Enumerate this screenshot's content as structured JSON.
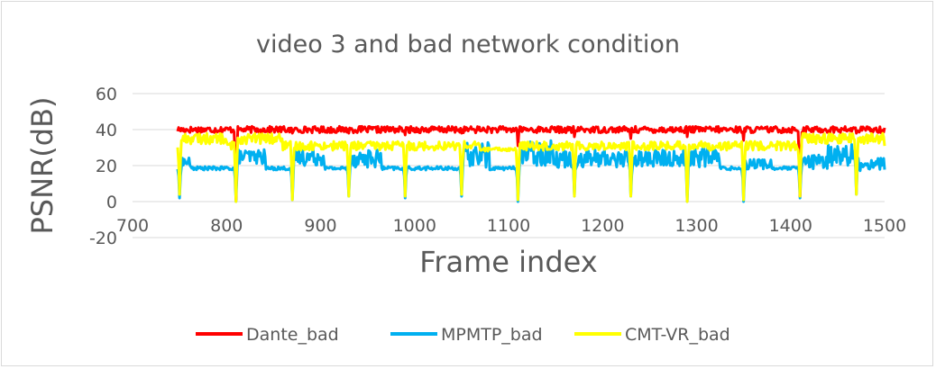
{
  "chart_data": {
    "type": "line",
    "title": "video 3 and bad network condition",
    "xlabel": "Frame index",
    "ylabel": "PSNR(dB)",
    "xlim": [
      700,
      1500
    ],
    "ylim": [
      -20,
      60
    ],
    "x_ticks": [
      700,
      800,
      900,
      1000,
      1100,
      1200,
      1300,
      1400,
      1500
    ],
    "y_ticks": [
      -20,
      0,
      20,
      40,
      60
    ],
    "grid": true,
    "legend_position": "bottom",
    "dip_frames": [
      750,
      810,
      870,
      930,
      990,
      1050,
      1110,
      1170,
      1230,
      1290,
      1350,
      1410,
      1470
    ],
    "series": [
      {
        "name": "Dante_bad",
        "color": "#ff0000",
        "baseline": 40,
        "noise_amplitude": 1.8,
        "dips": [
          {
            "frame": 810,
            "value": 1
          },
          {
            "frame": 870,
            "value": 38
          },
          {
            "frame": 930,
            "value": 38
          },
          {
            "frame": 990,
            "value": 37
          },
          {
            "frame": 1050,
            "value": 38
          },
          {
            "frame": 1110,
            "value": 31
          },
          {
            "frame": 1170,
            "value": 36
          },
          {
            "frame": 1230,
            "value": 35
          },
          {
            "frame": 1290,
            "value": 36
          },
          {
            "frame": 1350,
            "value": 34
          },
          {
            "frame": 1410,
            "value": 3
          },
          {
            "frame": 1470,
            "value": 38
          }
        ]
      },
      {
        "name": "MPMTP_bad",
        "color": "#00b0f0",
        "baseline": 18.5,
        "noise_amplitude": 1,
        "segments": [
          {
            "start": 752,
            "end": 762,
            "mean": 22,
            "amplitude": 3
          },
          {
            "start": 812,
            "end": 842,
            "mean": 25,
            "amplitude": 4
          },
          {
            "start": 872,
            "end": 905,
            "mean": 25,
            "amplitude": 5
          },
          {
            "start": 932,
            "end": 965,
            "mean": 24,
            "amplitude": 5
          },
          {
            "start": 1052,
            "end": 1080,
            "mean": 26,
            "amplitude": 7
          },
          {
            "start": 1112,
            "end": 1150,
            "mean": 27,
            "amplitude": 7
          },
          {
            "start": 1150,
            "end": 1230,
            "mean": 24,
            "amplitude": 5
          },
          {
            "start": 1232,
            "end": 1290,
            "mean": 24,
            "amplitude": 5
          },
          {
            "start": 1292,
            "end": 1325,
            "mean": 25,
            "amplitude": 6
          },
          {
            "start": 1352,
            "end": 1380,
            "mean": 21,
            "amplitude": 3
          },
          {
            "start": 1412,
            "end": 1440,
            "mean": 22,
            "amplitude": 4
          },
          {
            "start": 1440,
            "end": 1475,
            "mean": 26,
            "amplitude": 6
          },
          {
            "start": 1472,
            "end": 1500,
            "mean": 21,
            "amplitude": 4
          }
        ],
        "dips": [
          {
            "frame": 750,
            "value": 2
          },
          {
            "frame": 810,
            "value": 0
          },
          {
            "frame": 870,
            "value": 1
          },
          {
            "frame": 930,
            "value": 3
          },
          {
            "frame": 990,
            "value": 2
          },
          {
            "frame": 1050,
            "value": 3
          },
          {
            "frame": 1110,
            "value": 0
          },
          {
            "frame": 1170,
            "value": 3
          },
          {
            "frame": 1230,
            "value": 3
          },
          {
            "frame": 1290,
            "value": 0
          },
          {
            "frame": 1350,
            "value": 0
          },
          {
            "frame": 1410,
            "value": 2
          },
          {
            "frame": 1470,
            "value": 4
          }
        ]
      },
      {
        "name": "CMT-VR_bad",
        "color": "#ffff00",
        "baseline": 31,
        "noise_amplitude": 2.5,
        "segments": [
          {
            "start": 750,
            "end": 800,
            "mean": 35,
            "amplitude": 3
          },
          {
            "start": 810,
            "end": 860,
            "mean": 35,
            "amplitude": 3
          },
          {
            "start": 1070,
            "end": 1110,
            "mean": 29,
            "amplitude": 1
          },
          {
            "start": 1410,
            "end": 1500,
            "mean": 35,
            "amplitude": 3
          }
        ],
        "dips": [
          {
            "frame": 750,
            "value": 4
          },
          {
            "frame": 810,
            "value": 0
          },
          {
            "frame": 870,
            "value": 1
          },
          {
            "frame": 930,
            "value": 3
          },
          {
            "frame": 990,
            "value": 3
          },
          {
            "frame": 1050,
            "value": 4
          },
          {
            "frame": 1110,
            "value": 1
          },
          {
            "frame": 1170,
            "value": 3
          },
          {
            "frame": 1230,
            "value": 3
          },
          {
            "frame": 1290,
            "value": 0
          },
          {
            "frame": 1350,
            "value": 1
          },
          {
            "frame": 1410,
            "value": 3
          },
          {
            "frame": 1470,
            "value": 4
          }
        ]
      }
    ]
  }
}
